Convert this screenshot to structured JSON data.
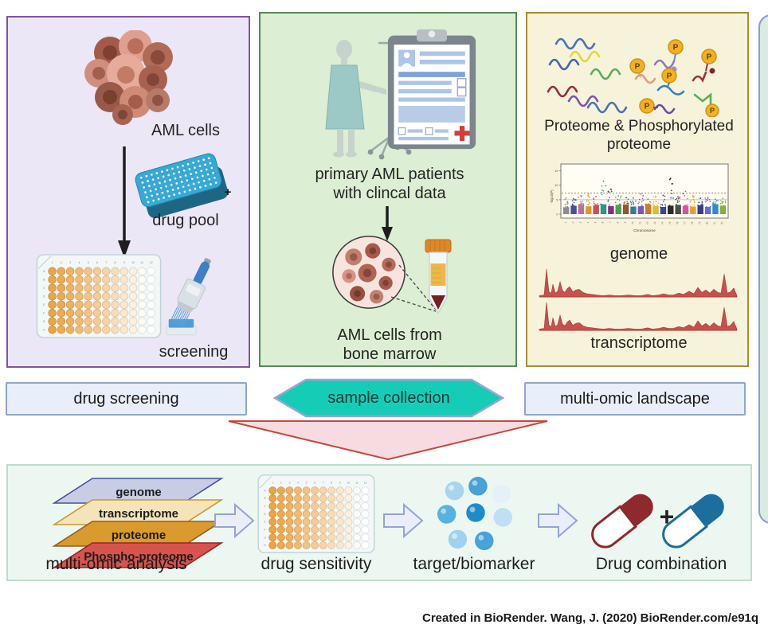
{
  "colors": {
    "panel_drug_screening_fill": "#ece7f6",
    "panel_drug_screening_border": "#7a55a6",
    "panel_sample_fill": "#dceed3",
    "panel_sample_border": "#568c56",
    "panel_omics_fill": "#f7f3da",
    "panel_omics_border": "#a98c31",
    "side_panel_fill": "#d8ece1",
    "side_panel_border": "#8c9bce",
    "label_box_fill": "#e9eefb",
    "label_box_border": "#8ea6cc",
    "hexagon_fill": "#15ccb6",
    "hexagon_border": "#9aa6d4",
    "hexagon_text": "#173c37",
    "funnel_fill": "#f8dbe1",
    "funnel_border": "#c6493d",
    "strip_fill": "#edf7f2",
    "strip_border": "#bedccd",
    "arrow_fill": "#eaeefb",
    "arrow_border": "#93a3d6",
    "capsule_red": "#8e292d",
    "capsule_blue": "#1c6e9e",
    "track_red": "#c6504b",
    "well_orange": "#e8a342",
    "phospho_badge": "#f3b022"
  },
  "left_panel": {
    "footer": "drug screening",
    "aml_cells": "AML cells",
    "drug_pool": "drug pool",
    "screening": "screening",
    "plus": "+"
  },
  "mid_panel": {
    "footer": "sample collection",
    "caption_top": [
      "primary AML patients",
      "with clincal data"
    ],
    "caption_bottom": [
      "AML cells from",
      "bone marrow"
    ]
  },
  "right_panel": {
    "footer": "multi-omic landscape",
    "caption_top": [
      "Proteome & Phosphorylated",
      "proteome"
    ],
    "genome": "genome",
    "transcriptome": "transcriptome",
    "phospho": "P"
  },
  "plate": {
    "columns": [
      "1",
      "2",
      "3",
      "4",
      "5",
      "6",
      "7",
      "8",
      "9",
      "10",
      "11",
      "12"
    ],
    "rows": [
      "A",
      "B",
      "C",
      "D",
      "E",
      "F",
      "G",
      "H"
    ]
  },
  "bottom_panel": {
    "layers": [
      {
        "label": "genome",
        "fill": "#c9cde3",
        "stroke": "#45519e"
      },
      {
        "label": "transcriptome",
        "fill": "#f5e4ba",
        "stroke": "#c8982f"
      },
      {
        "label": "proteome",
        "fill": "#d99a2e",
        "stroke": "#92601a"
      },
      {
        "label": "Phospho-proteome",
        "fill": "#d9534d",
        "stroke": "#8e2a2a"
      }
    ],
    "steps": [
      "multi-omic analysis",
      "drug sensitivity",
      "target/biomarker",
      "Drug combination"
    ],
    "plus": "+"
  },
  "credit": "Created in BioRender. Wang, J. (2020) BioRender.com/e91q",
  "chart_data": [
    {
      "type": "scatter",
      "name": "manhattan-genome-plot",
      "title": "",
      "xlabel": "Chromosome",
      "ylabel": "-log10(P)",
      "yticks": [
        "0",
        "5",
        "10",
        "15"
      ],
      "ylim": [
        0,
        16
      ],
      "categories": [
        "1",
        "2",
        "3",
        "4",
        "5",
        "6",
        "7",
        "8",
        "9",
        "10",
        "11",
        "12",
        "13",
        "14",
        "15",
        "16",
        "17",
        "18",
        "19",
        "20",
        "21",
        "22"
      ],
      "point_colors": [
        "#8c8c8c",
        "#4a4e9e",
        "#b5739e",
        "#d89a2e",
        "#cf4e55",
        "#1f9e93",
        "#8c2f7a",
        "#4fa04a",
        "#96592b",
        "#2e7d92",
        "#7e57b5",
        "#cc7a2e",
        "#e0bc2e",
        "#33479e",
        "#2b2b2b",
        "#4d4d4d",
        "#d9549a",
        "#e0a32e",
        "#3c3c8e",
        "#6a6ad1",
        "#2e8ecc",
        "#8cb032"
      ],
      "max_neglog10p": [
        5.6,
        5.3,
        6.4,
        6.9,
        6.1,
        11.4,
        8.7,
        6.3,
        5.7,
        5.6,
        7.0,
        5.2,
        6.2,
        6.5,
        12.4,
        6.0,
        7.9,
        6.3,
        5.5,
        5.8,
        5.2,
        5.4
      ],
      "sig_line_dashed": 7.3,
      "ref_line_solid": 5
    },
    {
      "type": "area",
      "name": "transcriptome-coverage-tracks",
      "tracks": 2,
      "color": "#c6504b",
      "profile": [
        [
          0,
          2
        ],
        [
          6,
          3
        ],
        [
          9,
          44
        ],
        [
          12,
          8
        ],
        [
          15,
          6
        ],
        [
          17,
          20
        ],
        [
          20,
          6
        ],
        [
          23,
          9
        ],
        [
          26,
          24
        ],
        [
          29,
          10
        ],
        [
          32,
          7
        ],
        [
          35,
          13
        ],
        [
          38,
          16
        ],
        [
          42,
          8
        ],
        [
          46,
          11
        ],
        [
          50,
          12
        ],
        [
          55,
          7
        ],
        [
          60,
          5
        ],
        [
          66,
          4
        ],
        [
          72,
          3
        ],
        [
          80,
          2
        ],
        [
          88,
          3
        ],
        [
          95,
          2
        ],
        [
          103,
          2
        ],
        [
          112,
          3
        ],
        [
          120,
          2
        ],
        [
          128,
          2
        ],
        [
          136,
          4
        ],
        [
          142,
          2
        ],
        [
          150,
          3
        ],
        [
          156,
          5
        ],
        [
          162,
          3
        ],
        [
          168,
          3
        ],
        [
          175,
          6
        ],
        [
          181,
          4
        ],
        [
          188,
          9
        ],
        [
          194,
          5
        ],
        [
          199,
          15
        ],
        [
          204,
          7
        ],
        [
          209,
          11
        ],
        [
          214,
          6
        ],
        [
          219,
          12
        ],
        [
          224,
          7
        ],
        [
          228,
          6
        ],
        [
          232,
          36
        ],
        [
          236,
          6
        ],
        [
          240,
          8
        ],
        [
          244,
          14
        ],
        [
          247,
          5
        ],
        [
          248,
          2
        ]
      ]
    }
  ]
}
